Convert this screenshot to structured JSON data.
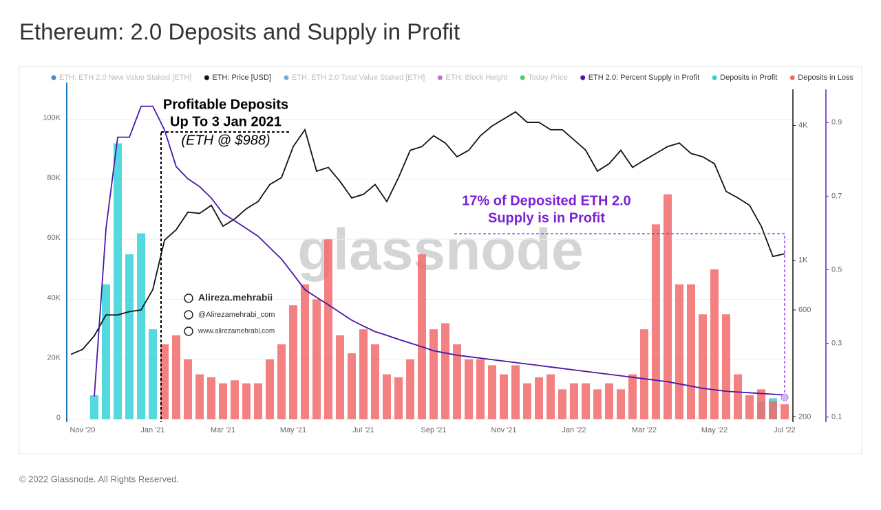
{
  "chart_data": {
    "type": "combo",
    "title": "Ethereum: 2.0 Deposits and Supply in Profit",
    "footer": "© 2022 Glassnode. All Rights Reserved.",
    "watermark": "glassnode",
    "annotations": [
      "Profitable Deposits",
      "Up To 3 Jan 2021",
      "(ETH @ $988)",
      "17% of Deposited ETH 2.0",
      "Supply is in Profit"
    ],
    "credits": [
      "Alireza.mehrabii",
      "@Alirezamehrabi_com",
      "www.alirezamehrabi.com"
    ],
    "categories": [
      null,
      "Nov '20",
      null,
      null,
      null,
      null,
      null,
      "Jan '21",
      null,
      null,
      null,
      null,
      null,
      "Mar '21",
      null,
      null,
      null,
      null,
      null,
      "May '21",
      null,
      null,
      null,
      null,
      null,
      "Jul '21",
      null,
      null,
      null,
      null,
      null,
      "Sep '21",
      null,
      null,
      null,
      null,
      null,
      "Nov '21",
      null,
      null,
      null,
      null,
      null,
      "Jan '22",
      null,
      null,
      null,
      null,
      null,
      "Mar '22",
      null,
      null,
      null,
      null,
      null,
      "May '22",
      null,
      null,
      null,
      null,
      null,
      "Jul '22"
    ],
    "ylim": [
      0,
      110000
    ],
    "yticks": [
      0,
      {
        "value": 20000,
        "label": "20K"
      },
      {
        "value": 40000,
        "label": "40K"
      },
      {
        "value": 60000,
        "label": "60K"
      },
      {
        "value": 80000,
        "label": "80K"
      },
      {
        "value": 100000,
        "label": "100K"
      }
    ],
    "y2lim": [
      195,
      5800
    ],
    "y2_log_scale": true,
    "y2ticks": [
      200,
      600,
      {
        "value": 1000,
        "label": "1K"
      },
      {
        "value": 4000,
        "label": "4K"
      }
    ],
    "y3lim": [
      0.094,
      0.99
    ],
    "y3ticks": [
      0.1,
      0.3,
      0.5,
      0.7,
      0.9
    ],
    "grid": true,
    "series": [
      {
        "name": "ETH: ETH 2.0 New Value Staked [ETH]",
        "color": "#1f6fb5",
        "hidden": true
      },
      {
        "name": "ETH: Price [USD]",
        "color": "#111111",
        "type": "line",
        "axis": "y2",
        "values": [
          380,
          400,
          460,
          570,
          570,
          590,
          600,
          740,
          1230,
          1370,
          1640,
          1620,
          1760,
          1420,
          1530,
          1700,
          1830,
          2180,
          2340,
          3220,
          3830,
          2500,
          2600,
          2250,
          1900,
          1970,
          2180,
          1830,
          2340,
          3100,
          3220,
          3600,
          3340,
          2900,
          3100,
          3600,
          3980,
          4280,
          4600,
          4130,
          4130,
          3830,
          3830,
          3450,
          3100,
          2500,
          2700,
          3100,
          2600,
          2800,
          3000,
          3220,
          3340,
          3000,
          2900,
          2700,
          2030,
          1900,
          1760,
          1420,
          1040,
          1070
        ]
      },
      {
        "name": "ETH: ETH 2.0 Total Value Staked [ETH]",
        "color": "#4a9be0",
        "hidden": true
      },
      {
        "name": "ETH: Block Height",
        "color": "#a855c9",
        "hidden": true
      },
      {
        "name": "Today Price",
        "color": "#2bbf3a",
        "hidden": true
      },
      {
        "name": "ETH 2.0: Percent Supply in Profit",
        "color": "#4b16a6",
        "type": "line",
        "axis": "y3",
        "values": [
          null,
          null,
          0.156,
          0.612,
          0.86,
          0.86,
          0.944,
          0.944,
          0.88,
          0.78,
          0.747,
          0.726,
          0.695,
          0.653,
          0.633,
          0.612,
          0.591,
          0.56,
          0.529,
          0.488,
          0.446,
          0.425,
          0.405,
          0.384,
          0.363,
          0.347,
          0.332,
          0.322,
          0.311,
          0.301,
          0.291,
          0.28,
          0.274,
          0.268,
          0.264,
          0.26,
          0.256,
          0.252,
          0.248,
          0.244,
          0.24,
          0.236,
          0.232,
          0.228,
          0.224,
          0.22,
          0.216,
          0.212,
          0.208,
          0.204,
          0.2,
          0.196,
          0.19,
          0.184,
          0.178,
          0.174,
          0.17,
          0.168,
          0.166,
          0.164,
          0.162,
          0.16
        ]
      },
      {
        "name": "Deposits in Profit",
        "color": "#35d2d8",
        "type": "bar",
        "values": [
          null,
          null,
          8000,
          45000,
          92000,
          55000,
          62000,
          30000,
          null,
          null,
          null,
          null,
          null,
          null,
          null,
          null,
          null,
          null,
          null,
          null,
          null,
          null,
          null,
          null,
          null,
          null,
          null,
          null,
          null,
          null,
          null,
          null,
          null,
          null,
          null,
          null,
          null,
          null,
          null,
          null,
          null,
          null,
          null,
          null,
          null,
          null,
          null,
          null,
          null,
          null,
          null,
          null,
          null,
          null,
          null,
          null,
          null,
          null,
          null,
          6000,
          7000,
          null
        ]
      },
      {
        "name": "Deposits in Loss",
        "color": "#f26b6b",
        "type": "bar",
        "values": [
          null,
          null,
          null,
          null,
          null,
          null,
          null,
          null,
          25000,
          28000,
          20000,
          15000,
          14000,
          12000,
          13000,
          12000,
          12000,
          20000,
          25000,
          38000,
          45000,
          40000,
          60000,
          28000,
          22000,
          30000,
          25000,
          15000,
          14000,
          20000,
          55000,
          30000,
          32000,
          25000,
          20000,
          20000,
          18000,
          15000,
          18000,
          12000,
          14000,
          15000,
          10000,
          12000,
          12000,
          10000,
          12000,
          10000,
          15000,
          30000,
          65000,
          75000,
          45000,
          45000,
          35000,
          50000,
          35000,
          15000,
          8000,
          10000,
          6000,
          5000
        ]
      }
    ]
  }
}
